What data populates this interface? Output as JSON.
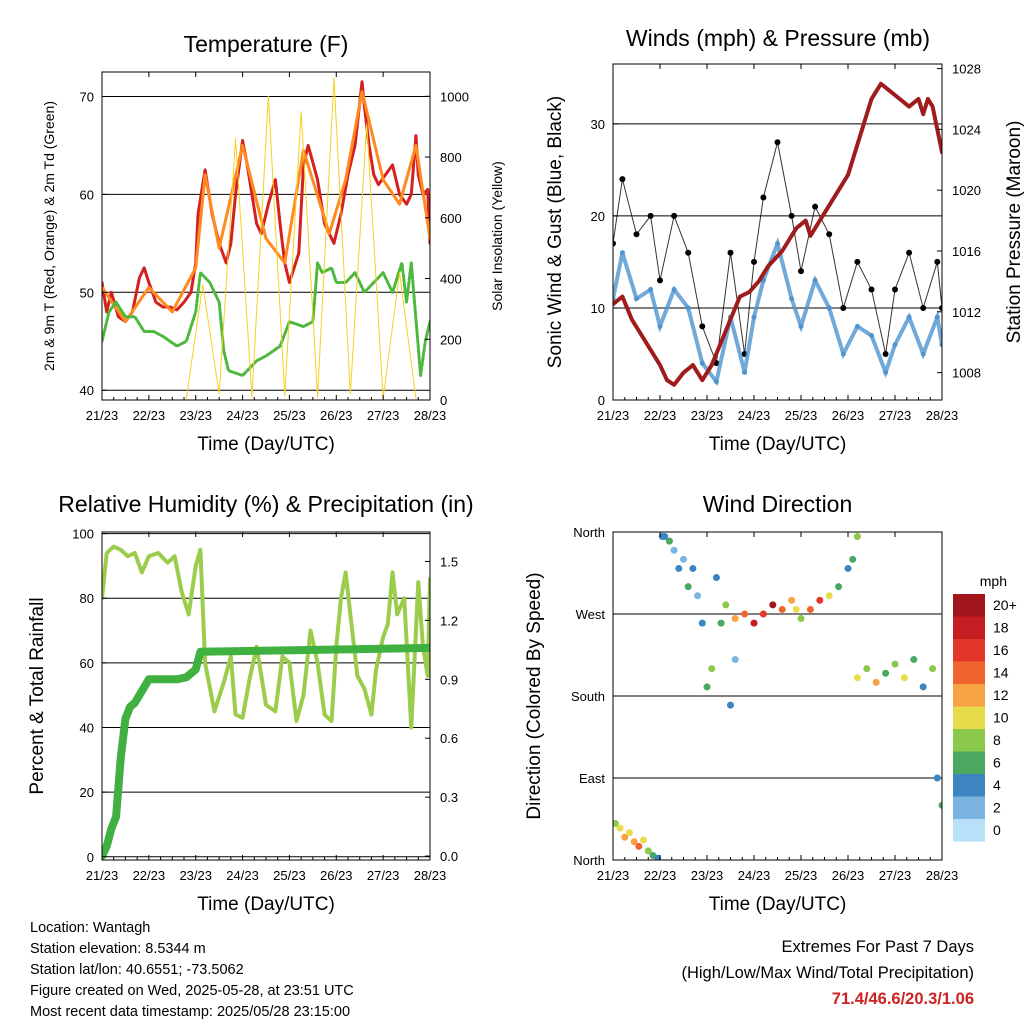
{
  "chart_data": [
    {
      "type": "line",
      "title": "Temperature (F)",
      "xlabel": "Time (Day/UTC)",
      "ylabel": "2m & 9m T (Red, Orange) & 2m Td (Green)",
      "ylabel_right": "Solar Insolation (Yellow)",
      "x_ticks": [
        "21/23",
        "22/23",
        "23/23",
        "24/23",
        "25/23",
        "26/23",
        "27/23",
        "28/23"
      ],
      "ylim": [
        39,
        72.5
      ],
      "y_ticks": [
        40,
        50,
        60,
        70
      ],
      "ylim_right": [
        0,
        1080
      ],
      "y_ticks_right": [
        0,
        200,
        400,
        600,
        800,
        1000
      ],
      "grid": "horizontal",
      "series": [
        {
          "color": "#d42020",
          "x": [
            0,
            0.1,
            0.2,
            0.35,
            0.5,
            0.65,
            0.8,
            0.9,
            1.0,
            1.15,
            1.3,
            1.45,
            1.6,
            1.75,
            1.9,
            2.0,
            2.05,
            2.2,
            2.35,
            2.5,
            2.65,
            2.75,
            2.85,
            3.0,
            3.1,
            3.2,
            3.3,
            3.4,
            3.55,
            3.7,
            3.8,
            3.9,
            4.0,
            4.2,
            4.3,
            4.4,
            4.6,
            4.75,
            4.85,
            4.95,
            5.1,
            5.25,
            5.4,
            5.55,
            5.6,
            5.7,
            5.8,
            5.9,
            6.05,
            6.2,
            6.35,
            6.5,
            6.6,
            6.7,
            6.75,
            6.85,
            6.95,
            7.0
          ],
          "y": [
            51,
            48,
            50,
            47.5,
            47,
            48,
            51.5,
            52.5,
            51,
            49,
            48.5,
            48.5,
            48.2,
            49,
            50,
            53,
            58,
            62.5,
            58,
            55,
            53,
            55,
            60,
            65.5,
            63,
            60,
            57,
            56,
            59,
            61.5,
            57,
            53,
            51,
            54,
            63,
            65,
            61.5,
            57,
            56,
            55,
            58,
            62,
            65,
            71.5,
            69,
            65,
            62,
            61,
            62,
            63,
            60,
            59,
            60,
            66,
            62,
            60,
            60.5,
            55
          ]
        },
        {
          "color": "#ff8a1e",
          "x": [
            0,
            0.5,
            1.0,
            1.5,
            2.0,
            2.2,
            2.5,
            3.0,
            3.5,
            3.9,
            4.3,
            4.85,
            5.2,
            5.55,
            6.0,
            6.35,
            6.7,
            7.0
          ],
          "y": [
            50.5,
            47,
            50.5,
            48,
            52.5,
            62,
            54.5,
            65,
            55.5,
            53,
            64.5,
            56,
            61.5,
            70.5,
            61.5,
            59,
            65,
            55.5
          ]
        },
        {
          "color": "#4cb83c",
          "x": [
            0,
            0.15,
            0.3,
            0.5,
            0.7,
            0.9,
            1.1,
            1.3,
            1.6,
            1.8,
            2.0,
            2.1,
            2.3,
            2.5,
            2.6,
            2.7,
            3.0,
            3.3,
            3.5,
            3.8,
            4.0,
            4.3,
            4.5,
            4.6,
            4.7,
            4.9,
            5.0,
            5.2,
            5.4,
            5.6,
            5.8,
            6.0,
            6.2,
            6.4,
            6.5,
            6.6,
            6.8,
            6.9,
            7.0
          ],
          "y": [
            45,
            48,
            49,
            47.5,
            47.5,
            46,
            46,
            45.5,
            44.5,
            45,
            48,
            52,
            51,
            49,
            44,
            42,
            41.5,
            43,
            43.5,
            44.5,
            47,
            46.5,
            47,
            53,
            52,
            52.5,
            51,
            51,
            52,
            50,
            51,
            52,
            50,
            53,
            49,
            53,
            41.5,
            45,
            47
          ]
        },
        {
          "color": "#f5d020",
          "axis": "right",
          "x": [
            1.8,
            2.15,
            2.5,
            2.85,
            3.2,
            3.55,
            3.9,
            4.25,
            4.6,
            4.95,
            5.3,
            5.65,
            6.0,
            6.35,
            6.7
          ],
          "y": [
            5,
            380,
            20,
            860,
            10,
            1000,
            15,
            950,
            10,
            1060,
            20,
            910,
            5,
            420,
            5
          ]
        }
      ]
    },
    {
      "type": "scatter",
      "title": "Winds (mph) & Pressure (mb)",
      "xlabel": "Time (Day/UTC)",
      "ylabel": "Sonic Wind & Gust (Blue, Black)",
      "ylabel_right": "Station Pressure (Maroon)",
      "x_ticks": [
        "21/23",
        "22/23",
        "23/23",
        "24/23",
        "25/23",
        "26/23",
        "27/23",
        "28/23"
      ],
      "ylim": [
        0,
        36.5
      ],
      "y_ticks": [
        0,
        10,
        20,
        30
      ],
      "ylim_right": [
        1006.2,
        1028.3
      ],
      "y_ticks_right": [
        1008,
        1012,
        1016,
        1020,
        1024,
        1028
      ],
      "grid": "horizontal",
      "series": [
        {
          "color": "#000000",
          "x": [
            0,
            0.2,
            0.5,
            0.8,
            1.0,
            1.3,
            1.6,
            1.9,
            2.2,
            2.5,
            2.8,
            3.0,
            3.2,
            3.5,
            3.8,
            4.0,
            4.3,
            4.6,
            4.9,
            5.2,
            5.5,
            5.8,
            6.0,
            6.3,
            6.6,
            6.9,
            7.0
          ],
          "y": [
            17,
            24,
            18,
            20,
            13,
            20,
            16,
            8,
            4,
            16,
            5,
            15,
            22,
            28,
            20,
            14,
            21,
            18,
            10,
            15,
            12,
            5,
            12,
            16,
            10,
            15,
            10
          ]
        },
        {
          "color": "#4d94d0",
          "x": [
            0,
            0.2,
            0.5,
            0.8,
            1.0,
            1.3,
            1.6,
            1.9,
            2.2,
            2.5,
            2.8,
            3.0,
            3.2,
            3.5,
            3.8,
            4.0,
            4.3,
            4.6,
            4.9,
            5.2,
            5.5,
            5.8,
            6.0,
            6.3,
            6.6,
            6.9,
            7.0
          ],
          "y": [
            11,
            16,
            11,
            12,
            8,
            12,
            10,
            4,
            2,
            9,
            3,
            9,
            13,
            17,
            11,
            8,
            13,
            10,
            5,
            8,
            7,
            3,
            6,
            9,
            5,
            9,
            6
          ]
        },
        {
          "color": "#a01c1c",
          "axis": "right",
          "x": [
            0,
            0.2,
            0.4,
            0.6,
            0.8,
            1.0,
            1.15,
            1.3,
            1.5,
            1.7,
            1.9,
            2.1,
            2.3,
            2.5,
            2.7,
            2.9,
            3.1,
            3.3,
            3.6,
            3.9,
            4.1,
            4.2,
            4.4,
            4.6,
            4.8,
            5.0,
            5.1,
            5.3,
            5.5,
            5.7,
            5.9,
            6.1,
            6.3,
            6.5,
            6.6,
            6.7,
            6.8,
            6.9,
            7.0
          ],
          "y": [
            1012.5,
            1013,
            1011.5,
            1010.5,
            1009.5,
            1008.5,
            1007.5,
            1007.2,
            1008,
            1008.5,
            1007.5,
            1008.5,
            1010,
            1011.5,
            1013,
            1013.3,
            1014,
            1015,
            1016,
            1017.5,
            1018,
            1017,
            1018,
            1019,
            1020,
            1021,
            1022,
            1024,
            1026,
            1027,
            1026.5,
            1026,
            1025.5,
            1026,
            1025,
            1026,
            1025.5,
            1024,
            1022.5
          ]
        }
      ]
    },
    {
      "type": "line",
      "title": "Relative Humidity (%) & Precipitation (in)",
      "xlabel": "Time (Day/UTC)",
      "ylabel": "Percent & Total Rainfall",
      "x_ticks": [
        "21/23",
        "22/23",
        "23/23",
        "24/23",
        "25/23",
        "26/23",
        "27/23",
        "28/23"
      ],
      "ylim": [
        -1,
        100.5
      ],
      "y_ticks": [
        0,
        20,
        40,
        60,
        80,
        100
      ],
      "ylim_right": [
        -0.02,
        1.65
      ],
      "y_ticks_right": [
        "0.0",
        "0.3",
        "0.6",
        "0.9",
        "1.2",
        "1.5"
      ],
      "grid": "horizontal",
      "series": [
        {
          "color": "#9ccc4c",
          "x": [
            0,
            0.1,
            0.25,
            0.4,
            0.55,
            0.7,
            0.85,
            1.0,
            1.2,
            1.4,
            1.55,
            1.7,
            1.85,
            2.0,
            2.1,
            2.2,
            2.4,
            2.6,
            2.75,
            2.85,
            3.0,
            3.15,
            3.3,
            3.5,
            3.7,
            3.85,
            4.0,
            4.15,
            4.3,
            4.45,
            4.6,
            4.75,
            4.9,
            5.0,
            5.1,
            5.2,
            5.3,
            5.45,
            5.6,
            5.75,
            5.85,
            6.0,
            6.1,
            6.2,
            6.3,
            6.45,
            6.6,
            6.75,
            6.85,
            6.95,
            7.0
          ],
          "y": [
            80,
            94,
            96,
            95,
            93,
            94,
            88,
            93,
            94,
            91,
            93,
            82,
            75,
            90,
            95,
            60,
            45,
            54,
            62,
            44,
            43,
            55,
            65,
            47,
            45,
            62,
            60,
            42,
            50,
            70,
            60,
            44,
            42,
            65,
            80,
            88,
            75,
            56,
            52,
            44,
            58,
            68,
            72,
            88,
            75,
            80,
            40,
            85,
            65,
            56,
            86
          ]
        },
        {
          "color": "#40b040",
          "axis": "right",
          "x": [
            0,
            0.1,
            0.2,
            0.3,
            0.4,
            0.5,
            0.6,
            0.7,
            0.8,
            1.0,
            1.2,
            1.4,
            1.6,
            1.8,
            2.0,
            2.1,
            7.0
          ],
          "y": [
            0.0,
            0.05,
            0.14,
            0.2,
            0.5,
            0.7,
            0.76,
            0.78,
            0.82,
            0.9,
            0.9,
            0.9,
            0.9,
            0.91,
            0.95,
            1.04,
            1.06
          ]
        }
      ]
    },
    {
      "type": "scatter",
      "title": "Wind Direction",
      "xlabel": "Time (Day/UTC)",
      "ylabel": "Direction (Colored By Speed)",
      "x_ticks": [
        "21/23",
        "22/23",
        "23/23",
        "24/23",
        "25/23",
        "26/23",
        "27/23",
        "28/23"
      ],
      "y_ticks": [
        "North",
        "West",
        "South",
        "East",
        "North"
      ],
      "ylim": [
        0,
        360
      ],
      "grid": "horizontal",
      "legend": {
        "title": "mph",
        "labels": [
          "20+",
          "18",
          "16",
          "14",
          "12",
          "10",
          "8",
          "6",
          "4",
          "2",
          "0"
        ],
        "colors": [
          "#a0161a",
          "#c41e22",
          "#e2372a",
          "#f0642e",
          "#f7a344",
          "#e8dc4a",
          "#8cc84a",
          "#4aa860",
          "#3c85c0",
          "#7ab4e0",
          "#b8e0f8"
        ]
      },
      "series": [
        {
          "x": [
            0.05,
            0.15,
            0.25,
            0.35,
            0.45,
            0.55,
            0.65,
            0.75,
            0.85,
            0.95,
            1.05,
            1.2
          ],
          "y": [
            40,
            35,
            25,
            30,
            20,
            15,
            22,
            10,
            5,
            2,
            355,
            350
          ],
          "speed": [
            8,
            10,
            12,
            10,
            12,
            14,
            10,
            8,
            6,
            4,
            4,
            2
          ]
        },
        {
          "x": [
            1.1,
            1.2,
            1.3,
            1.4,
            1.5,
            1.6,
            1.7,
            1.8,
            1.9,
            2.0,
            2.1,
            2.2,
            2.3,
            2.4,
            2.5,
            2.6
          ],
          "y": [
            355,
            350,
            340,
            320,
            330,
            300,
            320,
            290,
            260,
            190,
            210,
            310,
            260,
            280,
            170,
            220
          ],
          "speed": [
            4,
            6,
            2,
            4,
            2,
            6,
            4,
            2,
            4,
            6,
            8,
            4,
            6,
            8,
            4,
            2
          ]
        },
        {
          "x": [
            2.6,
            2.8,
            3.0,
            3.2,
            3.4,
            3.6,
            3.8,
            3.9,
            4.0,
            4.2,
            4.4,
            4.6,
            4.8,
            5.0,
            5.1,
            5.2
          ],
          "y": [
            265,
            270,
            260,
            270,
            280,
            275,
            285,
            275,
            265,
            275,
            285,
            290,
            300,
            320,
            330,
            355
          ],
          "speed": [
            12,
            14,
            18,
            16,
            20,
            14,
            12,
            10,
            8,
            14,
            16,
            10,
            6,
            4,
            6,
            8
          ]
        },
        {
          "x": [
            5.2,
            5.4,
            5.6,
            5.8,
            6.0,
            6.2,
            6.4,
            6.6,
            6.8,
            6.9,
            7.0
          ],
          "y": [
            200,
            210,
            195,
            205,
            215,
            200,
            220,
            190,
            210,
            90,
            60
          ],
          "speed": [
            10,
            8,
            12,
            6,
            8,
            10,
            6,
            4,
            8,
            4,
            6
          ]
        }
      ]
    }
  ],
  "footer": {
    "location": "Location: Wantagh",
    "elevation": "Station elevation: 8.5344 m",
    "latlon": "Station lat/lon: 40.6551; -73.5062",
    "created": "Figure created on Wed, 2025-05-28, at 23:51 UTC",
    "recent": "Most recent data timestamp: 2025/05/28 23:15:00",
    "extremes_title": "Extremes For Past 7 Days",
    "extremes_sub": "(High/Low/Max Wind/Total Precipitation)",
    "extremes_values": "71.4/46.6/20.3/1.06"
  }
}
